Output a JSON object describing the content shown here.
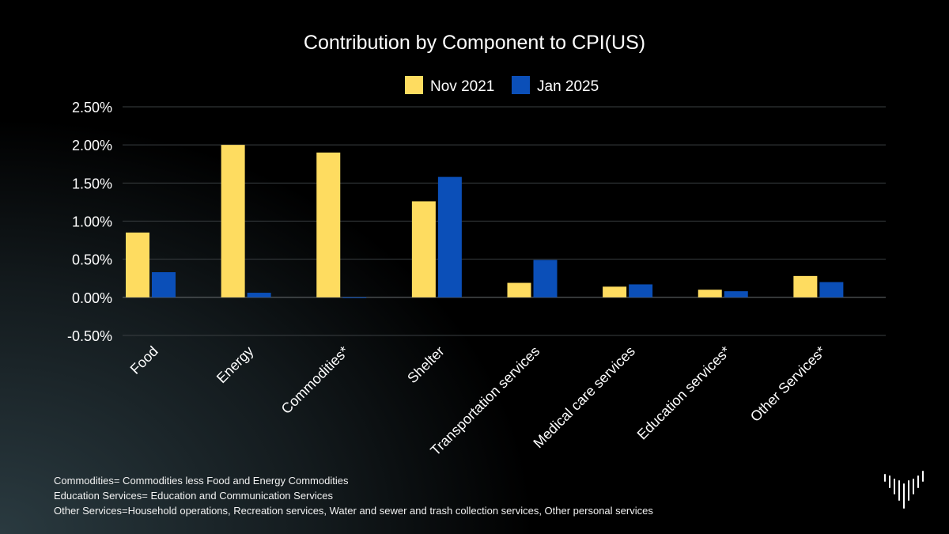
{
  "chart_data": {
    "type": "bar",
    "title": "Contribution by Component to CPI(US)",
    "categories": [
      "Food",
      "Energy",
      "Commodities*",
      "Shelter",
      "Transportation services",
      "Medical care services",
      "Education services*",
      "Other Services*"
    ],
    "series": [
      {
        "name": "Nov 2021",
        "color": "#fedc60",
        "values": [
          0.85,
          2.0,
          1.9,
          1.26,
          0.19,
          0.14,
          0.1,
          0.28
        ]
      },
      {
        "name": "Jan 2025",
        "color": "#0b4fb8",
        "values": [
          0.33,
          0.06,
          -0.01,
          1.58,
          0.49,
          0.17,
          0.08,
          0.2
        ]
      }
    ],
    "yticks": [
      "2.50%",
      "2.00%",
      "1.50%",
      "1.00%",
      "0.50%",
      "0.00%",
      "-0.50%"
    ],
    "ylim": [
      -0.5,
      2.5
    ],
    "grid": true,
    "legend": "top-center"
  },
  "footnotes": [
    "Commodities= Commodities less Food and Energy Commodities",
    "Education Services= Education and Communication Services",
    "Other Services=Household operations, Recreation services, Water and sewer and trash collection services, Other personal services"
  ]
}
